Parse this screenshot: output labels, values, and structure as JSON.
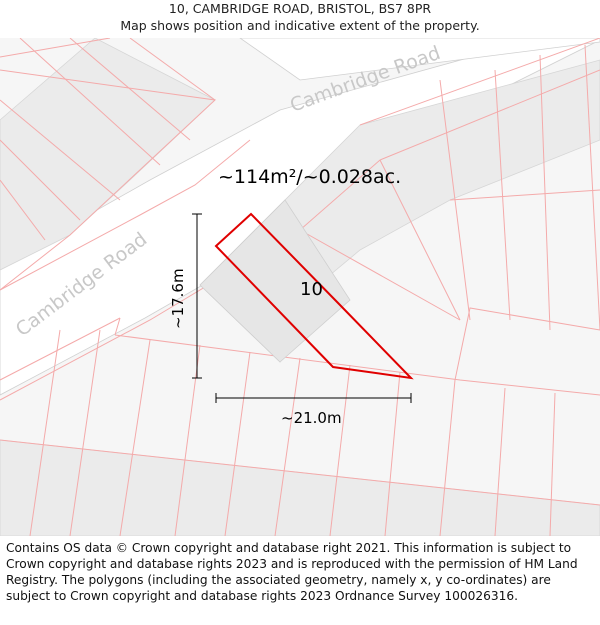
{
  "header": {
    "address": "10, CAMBRIDGE ROAD, BRISTOL, BS7 8PR",
    "subtitle": "Map shows position and indicative extent of the property."
  },
  "map": {
    "road_labels": [
      "Cambridge Road",
      "Cambridge Road"
    ],
    "plot_number": "10",
    "area_label": "~114m²/~0.028ac.",
    "width_label": "~21.0m",
    "height_label": "~17.6m",
    "colors": {
      "background": "#f6f6f6",
      "road": "#ffffff",
      "building": "#ebebeb",
      "parcel_line": "#f4aaaa",
      "property_outline": "#e00000",
      "road_label": "#c8c8c8"
    }
  },
  "footer": {
    "attribution": "Contains OS data © Crown copyright and database right 2021. This information is subject to Crown copyright and database rights 2023 and is reproduced with the permission of HM Land Registry. The polygons (including the associated geometry, namely x, y co-ordinates) are subject to Crown copyright and database rights 2023 Ordnance Survey 100026316."
  }
}
